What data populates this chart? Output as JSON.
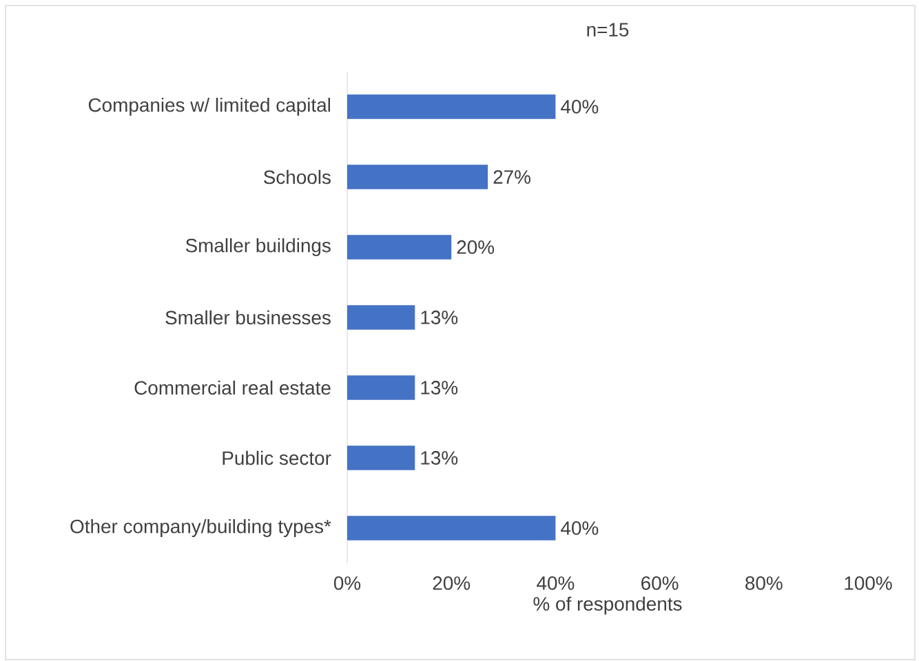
{
  "chart_data": {
    "type": "bar",
    "orientation": "horizontal",
    "title": "n=15",
    "xlabel": "% of respondents",
    "categories": [
      "Companies w/ limited capital",
      "Schools",
      "Smaller buildings",
      "Smaller businesses",
      "Commercial real estate",
      "Public sector",
      "Other company/building types*"
    ],
    "values": [
      40,
      27,
      20,
      13,
      13,
      13,
      40
    ],
    "value_labels": [
      "40%",
      "27%",
      "20%",
      "13%",
      "13%",
      "13%",
      "40%"
    ],
    "color": "#4472c4",
    "xlim": [
      0,
      100
    ],
    "xticks": [
      {
        "value": 0,
        "label": "0%"
      },
      {
        "value": 20,
        "label": "20%"
      },
      {
        "value": 40,
        "label": "40%"
      },
      {
        "value": 60,
        "label": "60%"
      },
      {
        "value": 80,
        "label": "80%"
      },
      {
        "value": 100,
        "label": "100%"
      }
    ]
  }
}
